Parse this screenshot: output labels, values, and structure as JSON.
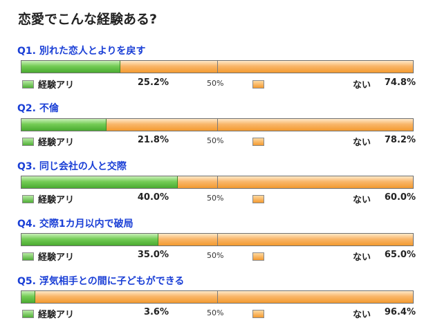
{
  "title": "恋愛でこんな経験ある?",
  "legend": {
    "yes": "経験アリ",
    "no": "ない",
    "mid": "50%"
  },
  "colors": {
    "yes": "#5cbb3e",
    "no": "#f5a23c",
    "question": "#1a3fd6"
  },
  "chart_data": {
    "type": "bar",
    "orientation": "horizontal",
    "stacked": true,
    "xlim": [
      0,
      100
    ],
    "categories": [
      "Q1. 別れた恋人とよりを戻す",
      "Q2. 不倫",
      "Q3. 同じ会社の人と交際",
      "Q4. 交際1カ月以内で破局",
      "Q5. 浮気相手との間に子どもができる"
    ],
    "series": [
      {
        "name": "経験アリ",
        "values": [
          25.2,
          21.8,
          40.0,
          35.0,
          3.6
        ]
      },
      {
        "name": "ない",
        "values": [
          74.8,
          78.2,
          60.0,
          65.0,
          96.4
        ]
      }
    ],
    "value_labels": {
      "yes": [
        "25.2%",
        "21.8%",
        "40.0%",
        "35.0%",
        "3.6%"
      ],
      "no": [
        "74.8%",
        "78.2%",
        "60.0%",
        "65.0%",
        "96.4%"
      ]
    }
  }
}
